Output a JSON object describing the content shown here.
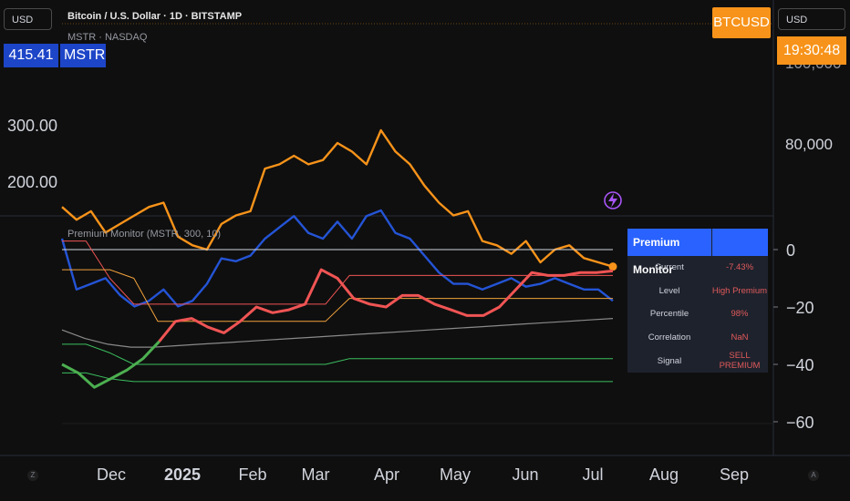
{
  "colors": {
    "btc": "#f7931a",
    "mstr": "#2454d6",
    "premium": "#f05454",
    "avg": "#8a8a8a",
    "upper1": "#f05454",
    "upper2": "#f2a23c",
    "lower1": "#3bbf5f",
    "lower2": "#3bbf5f",
    "zero": "#d1d4dc"
  },
  "top_left_currency": "USD",
  "top_right_currency": "USD",
  "header": {
    "title": "Bitcoin / U.S. Dollar · 1D · BITSTAMP",
    "compare": "MSTR · NASDAQ"
  },
  "mstr_badge": {
    "price": "415.41",
    "symbol": "MSTR"
  },
  "btc_badge": {
    "symbol": "BTCUSD",
    "time": "19:30:48",
    "partial_price": "100,000"
  },
  "indicator_label": "Premium Monitor (MSTR, 300, 10)",
  "lightning_icon": "lightning-icon",
  "table": {
    "title": "Premium Monitor",
    "rows": [
      {
        "key": "Current",
        "value": "-7.43%"
      },
      {
        "key": "Level",
        "value": "High Premium"
      },
      {
        "key": "Percentile",
        "value": "98%"
      },
      {
        "key": "Correlation",
        "value": "NaN"
      },
      {
        "key": "Signal",
        "value": "SELL PREMIUM"
      }
    ]
  },
  "scale_buttons": {
    "left": "Z",
    "right": "A"
  },
  "chart_data": [
    {
      "type": "line",
      "x_labels": [
        "Dec",
        "2025",
        "Feb",
        "Mar",
        "Apr",
        "May",
        "Jun",
        "Jul",
        "Aug",
        "Sep"
      ],
      "left_axis_ticks": [
        "300.00",
        "200.00"
      ],
      "right_axis_ticks": [
        "80,000"
      ],
      "series": [
        {
          "name": "BTCUSD",
          "y_right": [
            95000,
            98000,
            96000,
            101000,
            99000,
            97000,
            95000,
            94000,
            102000,
            104000,
            105000,
            99000,
            97000,
            96000,
            86000,
            85000,
            83000,
            85000,
            84000,
            80000,
            82000,
            85000,
            77000,
            82000,
            85000,
            90000,
            94000,
            97000,
            96000,
            103000,
            104000,
            106000,
            103000,
            108000,
            105000,
            104000,
            107000,
            108000,
            109000
          ]
        },
        {
          "name": "MSTR",
          "y_left": [
            300,
            390,
            380,
            370,
            400,
            420,
            410,
            390,
            420,
            410,
            380,
            335,
            340,
            330,
            300,
            280,
            260,
            290,
            300,
            270,
            300,
            260,
            250,
            290,
            300,
            330,
            360,
            380,
            380,
            390,
            380,
            370,
            385,
            380,
            370,
            380,
            390,
            390,
            410
          ]
        }
      ]
    },
    {
      "type": "line",
      "y_ticks": [
        0,
        -20,
        -40,
        -60
      ],
      "y_range": [
        -63,
        8
      ],
      "series": [
        {
          "name": "Premium",
          "values": [
            -40,
            -43,
            -48,
            -45,
            -42,
            -38,
            -32,
            -25,
            -24,
            -27,
            -29,
            -25,
            -20,
            -22,
            -21,
            -19,
            -7,
            -10,
            -17,
            -19,
            -20,
            -16,
            -16,
            -19,
            -21,
            -23,
            -23,
            -20,
            -14,
            -8,
            -9,
            -9,
            -8,
            -8,
            -7.43
          ]
        },
        {
          "name": "Average",
          "values": [
            -28,
            -31,
            -33,
            -34,
            -34,
            -33.5,
            -33,
            -32.5,
            -32,
            -31.5,
            -31,
            -30.5,
            -30,
            -29.5,
            -29,
            -28.5,
            -28,
            -27.5,
            -27,
            -26.5,
            -26,
            -25.5,
            -25,
            -24.5,
            -24
          ]
        },
        {
          "name": "Upper 1",
          "values": [
            3,
            3,
            -10,
            -19,
            -19,
            -19,
            -19,
            -19,
            -19,
            -19,
            -19,
            -19,
            -9,
            -9,
            -9,
            -9,
            -9,
            -9,
            -9,
            -9,
            -9,
            -9,
            -9,
            -9
          ]
        },
        {
          "name": "Upper 2",
          "values": [
            -7,
            -7,
            -7,
            -10,
            -25,
            -25,
            -25,
            -25,
            -25,
            -25,
            -25,
            -25,
            -17,
            -17,
            -17,
            -17,
            -17,
            -17,
            -17,
            -17,
            -17,
            -17,
            -17,
            -17
          ]
        },
        {
          "name": "Lower 1",
          "values": [
            -33,
            -33,
            -36,
            -40,
            -40,
            -40,
            -40,
            -40,
            -40,
            -40,
            -40,
            -40,
            -38,
            -38,
            -38,
            -38,
            -38,
            -38,
            -38,
            -38,
            -38,
            -38,
            -38,
            -38
          ]
        },
        {
          "name": "Lower 2",
          "values": [
            -43,
            -43,
            -45,
            -46,
            -46,
            -46,
            -46,
            -46,
            -46,
            -46,
            -46,
            -46,
            -46,
            -46,
            -46,
            -46,
            -46,
            -46,
            -46,
            -46,
            -46,
            -46,
            -46,
            -46
          ]
        }
      ]
    }
  ]
}
